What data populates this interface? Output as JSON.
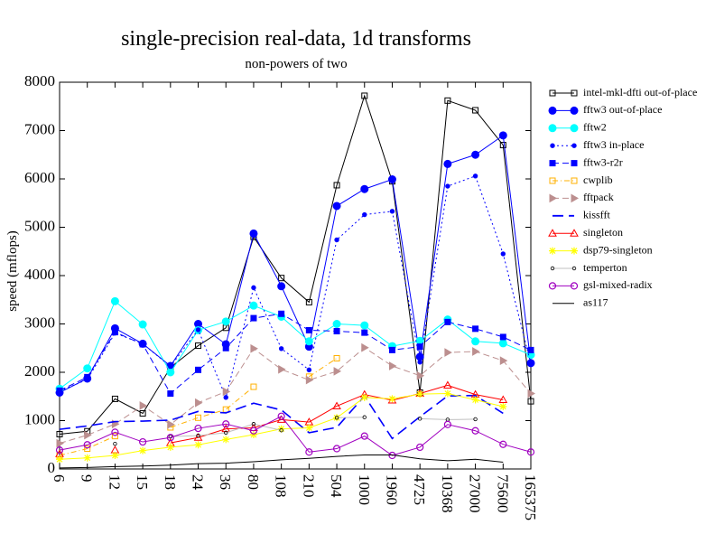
{
  "chart_data": {
    "type": "line",
    "title": "single-precision real-data, 1d transforms",
    "subtitle": "non-powers of two",
    "xlabel": "",
    "ylabel": "speed (mflops)",
    "ylim": [
      0,
      8000
    ],
    "yticks": [
      0,
      1000,
      2000,
      3000,
      4000,
      5000,
      6000,
      7000,
      8000
    ],
    "categories": [
      "6",
      "9",
      "12",
      "15",
      "18",
      "24",
      "36",
      "80",
      "108",
      "210",
      "504",
      "1000",
      "1960",
      "4725",
      "10368",
      "27000",
      "75600",
      "165375"
    ],
    "grid": false,
    "legend_position": "right",
    "series": [
      {
        "name": "intel-mkl-dfti out-of-place",
        "color": "#000000",
        "dash": "",
        "marker": "open-square",
        "values": [
          720,
          780,
          1450,
          1150,
          2100,
          2550,
          2920,
          4800,
          3950,
          3450,
          5870,
          7720,
          5950,
          1580,
          7620,
          7420,
          6700,
          1400
        ]
      },
      {
        "name": "fftw3 out-of-place",
        "color": "#0000ff",
        "dash": "",
        "marker": "filled-circle",
        "values": [
          1580,
          1870,
          2910,
          2590,
          2130,
          3000,
          2580,
          4870,
          3780,
          2530,
          5440,
          5790,
          5990,
          2320,
          6310,
          6500,
          6900,
          2190
        ]
      },
      {
        "name": "fftw2",
        "color": "#00ffff",
        "dash": "",
        "marker": "filled-circle",
        "values": [
          1660,
          2080,
          3470,
          2990,
          2000,
          2870,
          3050,
          3380,
          3150,
          2640,
          3000,
          2970,
          2540,
          2650,
          3090,
          2640,
          2600,
          2360
        ]
      },
      {
        "name": "fftw3 in-place",
        "color": "#0000ff",
        "dash": "2,3",
        "marker": "small-dot",
        "values": [
          1610,
          1850,
          2810,
          2590,
          2120,
          2880,
          1480,
          3750,
          2490,
          2050,
          4740,
          5260,
          5330,
          2210,
          5850,
          6060,
          4450,
          2180
        ]
      },
      {
        "name": "fftw3-r2r",
        "color": "#0000ff",
        "dash": "7,4",
        "marker": "filled-square",
        "values": [
          1620,
          1900,
          2830,
          2580,
          1560,
          2050,
          2500,
          3120,
          3210,
          2870,
          2850,
          2820,
          2460,
          2530,
          3040,
          2900,
          2730,
          2460
        ]
      },
      {
        "name": "cwplib",
        "color": "#ffb000",
        "dash": "6,3,1,3",
        "marker": "open-square",
        "values": [
          280,
          420,
          680,
          null,
          860,
          1060,
          1230,
          1700,
          null,
          1910,
          2290,
          null,
          null,
          null,
          null,
          null,
          null,
          null
        ]
      },
      {
        "name": "fftpack",
        "color": "#bc8f8f",
        "dash": "7,4",
        "marker": "triangle-right",
        "values": [
          530,
          700,
          930,
          1310,
          920,
          1370,
          1600,
          2490,
          2060,
          1840,
          2020,
          2510,
          2130,
          1930,
          2410,
          2430,
          2240,
          1560
        ]
      },
      {
        "name": "kissfft",
        "color": "#0000ff",
        "dash": "12,6",
        "marker": "none",
        "values": [
          820,
          890,
          980,
          990,
          1010,
          1190,
          1160,
          1360,
          1220,
          750,
          860,
          1510,
          630,
          1080,
          1510,
          1520,
          1150,
          null
        ]
      },
      {
        "name": "singleton",
        "color": "#ff0000",
        "dash": "",
        "marker": "open-triangle",
        "values": [
          310,
          null,
          390,
          null,
          540,
          650,
          830,
          850,
          1020,
          970,
          1300,
          1540,
          1420,
          1560,
          1730,
          1540,
          1430,
          null
        ]
      },
      {
        "name": "dsp79-singleton",
        "color": "#ffff00",
        "dash": "",
        "marker": "star",
        "values": [
          200,
          230,
          280,
          380,
          450,
          500,
          610,
          710,
          830,
          850,
          1060,
          1480,
          1450,
          1550,
          1560,
          1430,
          1290,
          null
        ]
      },
      {
        "name": "temperton",
        "color": "#c0c0c0",
        "dash": "",
        "marker": "small-open-circle",
        "values": [
          null,
          null,
          520,
          null,
          670,
          690,
          750,
          930,
          800,
          null,
          1060,
          1070,
          null,
          1040,
          1020,
          1030,
          null,
          null
        ]
      },
      {
        "name": "gsl-mixed-radix",
        "color": "#a000c0",
        "dash": "",
        "marker": "open-circle",
        "values": [
          390,
          500,
          760,
          560,
          650,
          840,
          930,
          790,
          1090,
          350,
          420,
          680,
          280,
          450,
          920,
          790,
          510,
          350
        ]
      },
      {
        "name": "as117",
        "color": "#000000",
        "dash": "",
        "marker": "none",
        "values": [
          20,
          30,
          50,
          60,
          80,
          110,
          120,
          150,
          190,
          220,
          260,
          290,
          290,
          210,
          170,
          200,
          140,
          null
        ]
      }
    ]
  }
}
